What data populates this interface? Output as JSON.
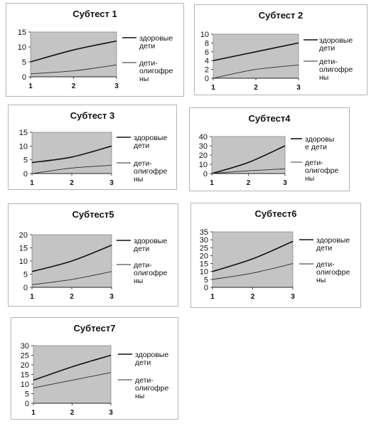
{
  "chart_data": [
    {
      "type": "line",
      "title": "Субтест 1",
      "x": [
        1,
        2,
        3
      ],
      "ylim": [
        0,
        15
      ],
      "yticks": [
        0,
        5,
        10,
        15
      ],
      "grid": false,
      "legend": "right",
      "series": [
        {
          "name": "здоровые дети",
          "values": [
            5,
            9,
            12
          ]
        },
        {
          "name": "дети-олигофрены",
          "values": [
            1,
            2,
            4
          ]
        }
      ]
    },
    {
      "type": "line",
      "title": "Субтест 2",
      "x": [
        1,
        2,
        3
      ],
      "ylim": [
        0,
        10
      ],
      "yticks": [
        0,
        2,
        4,
        6,
        8,
        10
      ],
      "grid": false,
      "legend": "right",
      "series": [
        {
          "name": "здоровые дети",
          "values": [
            4,
            6,
            8
          ]
        },
        {
          "name": "дети-олигофрены",
          "values": [
            0,
            2,
            3
          ]
        }
      ]
    },
    {
      "type": "line",
      "title": "Субтест 3",
      "x": [
        1,
        2,
        3
      ],
      "ylim": [
        0,
        15
      ],
      "yticks": [
        0,
        5,
        10,
        15
      ],
      "grid": false,
      "legend": "right",
      "series": [
        {
          "name": "здоровые дети",
          "values": [
            4,
            6,
            10
          ]
        },
        {
          "name": "дети-олигофрены",
          "values": [
            0,
            2,
            3
          ]
        }
      ]
    },
    {
      "type": "line",
      "title": "Субтест4",
      "x": [
        1,
        2,
        3
      ],
      "ylim": [
        0,
        40
      ],
      "yticks": [
        0,
        10,
        20,
        30,
        40
      ],
      "grid": false,
      "legend": "right",
      "series": [
        {
          "name": "здоровые дети",
          "values": [
            0,
            12,
            30
          ]
        },
        {
          "name": "дети-олигофрены",
          "values": [
            0,
            3,
            5
          ]
        }
      ]
    },
    {
      "type": "line",
      "title": "Субтест5",
      "x": [
        1,
        2,
        3
      ],
      "ylim": [
        0,
        20
      ],
      "yticks": [
        0,
        5,
        10,
        15,
        20
      ],
      "grid": false,
      "legend": "right",
      "series": [
        {
          "name": "здоровые дети",
          "values": [
            6,
            10,
            16
          ]
        },
        {
          "name": "дети-олигофрены",
          "values": [
            1,
            3,
            6
          ]
        }
      ]
    },
    {
      "type": "line",
      "title": "Субтест6",
      "x": [
        1,
        2,
        3
      ],
      "ylim": [
        0,
        35
      ],
      "yticks": [
        0,
        5,
        10,
        15,
        20,
        25,
        30,
        35
      ],
      "grid": false,
      "legend": "right",
      "series": [
        {
          "name": "здоровые дети",
          "values": [
            10,
            18,
            29
          ]
        },
        {
          "name": "дети-олигофрены",
          "values": [
            5,
            9,
            15
          ]
        }
      ]
    },
    {
      "type": "line",
      "title": "Субтест7",
      "x": [
        1,
        2,
        3
      ],
      "ylim": [
        0,
        30
      ],
      "yticks": [
        0,
        5,
        10,
        15,
        20,
        25,
        30
      ],
      "grid": false,
      "legend": "right",
      "series": [
        {
          "name": "здоровые дети",
          "values": [
            12,
            19,
            25
          ]
        },
        {
          "name": "дети-олигофрены",
          "values": [
            8,
            12,
            16
          ]
        }
      ]
    }
  ],
  "colors": {
    "plot_area": "#c4c4c4",
    "series_1": "#111111",
    "series_2": "#2a2a2a"
  }
}
